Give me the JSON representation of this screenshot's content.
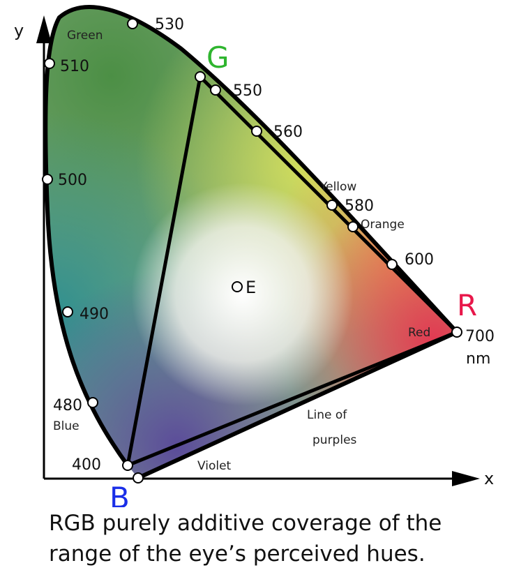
{
  "axes": {
    "x_label": "x",
    "y_label": "y"
  },
  "wavelengths": {
    "w530": "530",
    "w510": "510",
    "w550": "550",
    "w560": "560",
    "w500": "500",
    "w580": "580",
    "w600": "600",
    "w490": "490",
    "w700": "700",
    "nm": "nm",
    "w480": "480",
    "w400": "400"
  },
  "color_names": {
    "green": "Green",
    "yellow": "Yellow",
    "orange": "Orange",
    "red": "Red",
    "blue": "Blue",
    "violet": "Violet",
    "line_of": "Line of",
    "purples": "purples"
  },
  "primaries": {
    "G": {
      "label": "G",
      "color": "#2fb52f"
    },
    "R": {
      "label": "R",
      "color": "#e8174a"
    },
    "B": {
      "label": "B",
      "color": "#1a2ee8"
    }
  },
  "white_point": "E",
  "caption": {
    "line1": "RGB purely additive coverage of the",
    "line2": "range of the eye’s perceived hues."
  }
}
